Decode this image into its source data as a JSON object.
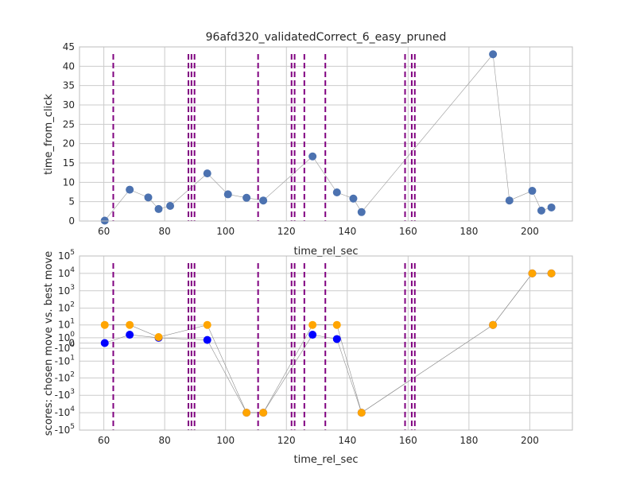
{
  "chart_data": [
    {
      "type": "scatter",
      "title": "96afd320_validatedCorrect_6_easy_pruned",
      "xlabel": "time_rel_sec",
      "ylabel": "time_from_click",
      "xlim": [
        52,
        214
      ],
      "ylim": [
        0,
        45
      ],
      "xticks": [
        60,
        80,
        100,
        120,
        140,
        160,
        180,
        200
      ],
      "yticks": [
        0,
        5,
        10,
        15,
        20,
        25,
        30,
        35,
        40,
        45
      ],
      "grid": true,
      "series": [
        {
          "color": "#4c72b0",
          "x": [
            60.3,
            68.5,
            74.6,
            78.0,
            81.8,
            94.0,
            100.8,
            106.9,
            112.4,
            128.6,
            136.6,
            142.0,
            144.7,
            187.9,
            193.3,
            200.8,
            203.8,
            207.1
          ],
          "y": [
            0.1,
            8.1,
            6.1,
            3.1,
            3.9,
            12.3,
            6.9,
            6.0,
            5.3,
            16.7,
            7.4,
            5.8,
            2.3,
            43.1,
            5.3,
            7.8,
            2.7,
            3.5
          ]
        }
      ],
      "vlines": [
        63.1,
        87.8,
        88.8,
        89.8,
        110.7,
        121.7,
        122.7,
        125.9,
        132.8,
        159.0,
        161.2,
        162.2
      ],
      "vline_color": "#800080"
    },
    {
      "type": "scatter",
      "title": "",
      "xlabel": "time_rel_sec",
      "ylabel": "scores: chosen move vs. best move",
      "yscale": "symlog",
      "xlim": [
        52,
        214
      ],
      "ylim": [
        -100000,
        100000
      ],
      "xticks": [
        60,
        80,
        100,
        120,
        140,
        160,
        180,
        200
      ],
      "ytick_labels": [
        "10^5",
        "10^4",
        "10^3",
        "10^2",
        "10^1",
        "10^0",
        "0",
        "-10^0",
        "-10^1",
        "-10^2",
        "-10^3",
        "-10^4",
        "-10^5"
      ],
      "grid": true,
      "series": [
        {
          "color": "#0000ff",
          "x": [
            60.3,
            68.5,
            78.0,
            94.0,
            106.9,
            112.4,
            128.6,
            136.6,
            144.7,
            187.9,
            200.8,
            207.1
          ],
          "y": [
            0,
            2,
            1,
            0.5,
            -10000,
            -10000,
            2,
            0.7,
            -10000,
            10,
            10000,
            10000
          ]
        },
        {
          "color": "#ffa500",
          "x": [
            60.3,
            68.5,
            78.0,
            94.0,
            106.9,
            112.4,
            128.6,
            136.6,
            144.7,
            187.9,
            200.8,
            207.1
          ],
          "y": [
            10,
            10,
            1.2,
            10,
            -10000,
            -10000,
            10,
            10,
            -10000,
            10,
            10000,
            10000
          ]
        }
      ],
      "vlines": [
        63.1,
        87.8,
        88.8,
        89.8,
        110.7,
        121.7,
        122.7,
        125.9,
        132.8,
        159.0,
        161.2,
        162.2
      ],
      "vline_color": "#800080"
    }
  ]
}
